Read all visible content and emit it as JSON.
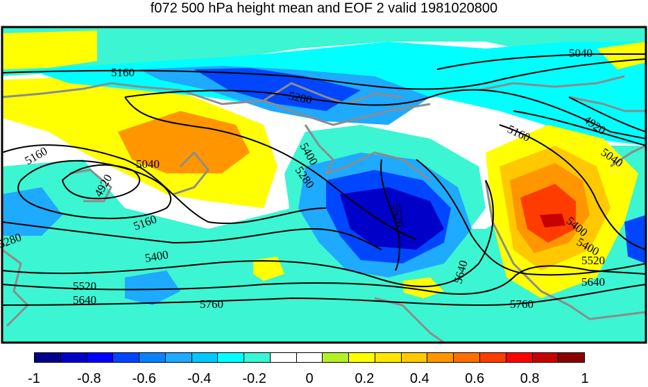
{
  "title": "f072 500 hPa height mean and EOF 2 valid 1981020800",
  "colorbar": {
    "colors": [
      "#00008b",
      "#0000c8",
      "#0000ff",
      "#0046ff",
      "#0a82ff",
      "#1eaaff",
      "#00c8ff",
      "#00ffff",
      "#3cf5d2",
      "#ffffff",
      "#ffffff",
      "#b4f028",
      "#ffff00",
      "#ffe600",
      "#ffc800",
      "#ff9600",
      "#ff6e00",
      "#ff3c00",
      "#ff0000",
      "#c80000",
      "#8b0000"
    ],
    "tick_labels": [
      "-1",
      "-0.8",
      "-0.6",
      "-0.4",
      "-0.2",
      "0",
      "0.2",
      "0.4",
      "0.6",
      "0.8",
      "1"
    ]
  },
  "contour_labels": [
    "5040",
    "5160",
    "5280",
    "4920",
    "5160",
    "5400",
    "5040",
    "5160",
    "4920",
    "5040",
    "5280",
    "5400",
    "5160",
    "5520",
    "5280",
    "5400",
    "5640",
    "5520",
    "5640",
    "5760",
    "5400",
    "5520",
    "5640",
    "5760"
  ],
  "colors": {
    "land_outline": "#8c8c8c",
    "contour": "#000000"
  }
}
